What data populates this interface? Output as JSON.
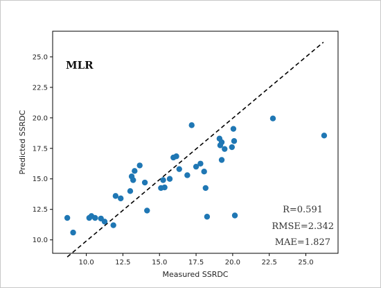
{
  "chart_data": {
    "type": "scatter",
    "title": "",
    "xlabel": "Measured SSRDC",
    "ylabel": "Predicted SSRDC",
    "xlim": [
      7.7,
      27.2
    ],
    "ylim": [
      8.9,
      27.1
    ],
    "xticks": [
      10.0,
      12.5,
      15.0,
      17.5,
      20.0,
      22.5,
      25.0
    ],
    "xtick_labels": [
      "10.0",
      "12.5",
      "15.0",
      "17.5",
      "20.0",
      "22.5",
      "25.0"
    ],
    "yticks": [
      10.0,
      12.5,
      15.0,
      17.5,
      20.0,
      22.5,
      25.0
    ],
    "ytick_labels": [
      "10.0",
      "12.5",
      "15.0",
      "17.5",
      "20.0",
      "22.5",
      "25.0"
    ],
    "grid": false,
    "point_color": "#1f77b4",
    "fit_line": {
      "style": "dashed",
      "color": "#000000",
      "x": [
        8.7,
        26.2
      ],
      "y": [
        8.6,
        26.2
      ]
    },
    "annotations": {
      "model": "MLR",
      "r": "R=0.591",
      "rmse": "RMSE=2.342",
      "mae": "MAE=1.827"
    },
    "points": [
      {
        "x": 8.7,
        "y": 11.8
      },
      {
        "x": 9.1,
        "y": 10.6
      },
      {
        "x": 10.2,
        "y": 11.8
      },
      {
        "x": 10.35,
        "y": 11.95
      },
      {
        "x": 10.6,
        "y": 11.8
      },
      {
        "x": 11.0,
        "y": 11.75
      },
      {
        "x": 11.25,
        "y": 11.5
      },
      {
        "x": 11.85,
        "y": 11.2
      },
      {
        "x": 12.0,
        "y": 13.6
      },
      {
        "x": 12.35,
        "y": 13.4
      },
      {
        "x": 13.0,
        "y": 14.0
      },
      {
        "x": 13.1,
        "y": 15.2
      },
      {
        "x": 13.2,
        "y": 14.9
      },
      {
        "x": 13.3,
        "y": 15.65
      },
      {
        "x": 13.65,
        "y": 16.1
      },
      {
        "x": 14.0,
        "y": 14.7
      },
      {
        "x": 14.15,
        "y": 12.4
      },
      {
        "x": 15.1,
        "y": 14.25
      },
      {
        "x": 15.25,
        "y": 14.9
      },
      {
        "x": 15.35,
        "y": 14.3
      },
      {
        "x": 15.7,
        "y": 15.0
      },
      {
        "x": 15.95,
        "y": 16.75
      },
      {
        "x": 16.15,
        "y": 16.85
      },
      {
        "x": 16.35,
        "y": 15.8
      },
      {
        "x": 16.9,
        "y": 15.3
      },
      {
        "x": 17.2,
        "y": 19.4
      },
      {
        "x": 17.5,
        "y": 16.0
      },
      {
        "x": 17.8,
        "y": 16.25
      },
      {
        "x": 18.05,
        "y": 15.6
      },
      {
        "x": 18.15,
        "y": 14.25
      },
      {
        "x": 18.25,
        "y": 11.9
      },
      {
        "x": 19.1,
        "y": 18.3
      },
      {
        "x": 19.15,
        "y": 17.75
      },
      {
        "x": 19.25,
        "y": 16.55
      },
      {
        "x": 19.25,
        "y": 18.0
      },
      {
        "x": 19.45,
        "y": 17.45
      },
      {
        "x": 19.95,
        "y": 17.6
      },
      {
        "x": 20.05,
        "y": 19.1
      },
      {
        "x": 20.1,
        "y": 18.1
      },
      {
        "x": 20.15,
        "y": 12.0
      },
      {
        "x": 22.75,
        "y": 19.95
      },
      {
        "x": 26.25,
        "y": 18.55
      }
    ]
  }
}
